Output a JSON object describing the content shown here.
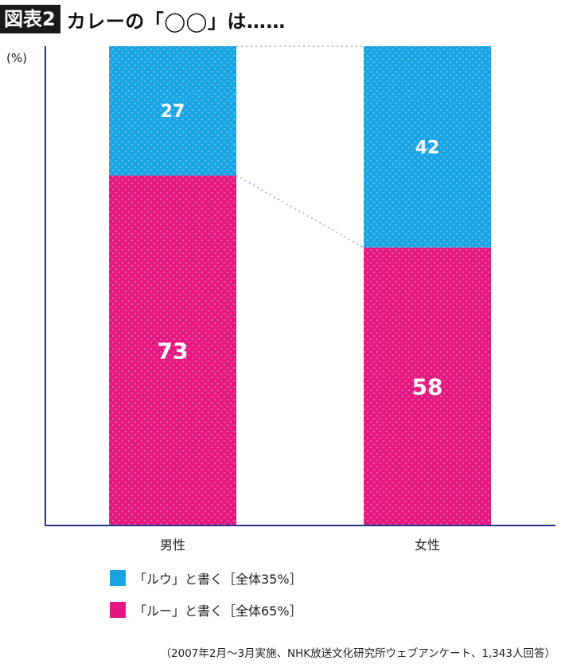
{
  "header": {
    "badge": "図表2",
    "title": "カレーの「◯◯」は……"
  },
  "colors": {
    "series1": "#1ba4e3",
    "series2": "#e3177f",
    "axis": "#2b2f8f",
    "connector": "#a3a6c8"
  },
  "chart_data": {
    "type": "bar",
    "stacked": true,
    "categories": [
      "男性",
      "女性"
    ],
    "series": [
      {
        "name": "「ルー」と書く［全体65%］",
        "values": [
          73,
          58
        ]
      },
      {
        "name": "「ルウ」と書く［全体35%］",
        "values": [
          27,
          42
        ]
      }
    ],
    "ylabel": "(%)",
    "ylim": [
      0,
      100
    ],
    "legend_placement": "bottom-left",
    "grid": false
  },
  "legend": [
    {
      "label": "「ルウ」と書く［全体35%］",
      "color": "#1ba4e3"
    },
    {
      "label": "「ルー」と書く［全体65%］",
      "color": "#e3177f"
    }
  ],
  "source": "（2007年2月〜3月実施、NHK放送文化研究所ウェブアンケート、1,343人回答）"
}
